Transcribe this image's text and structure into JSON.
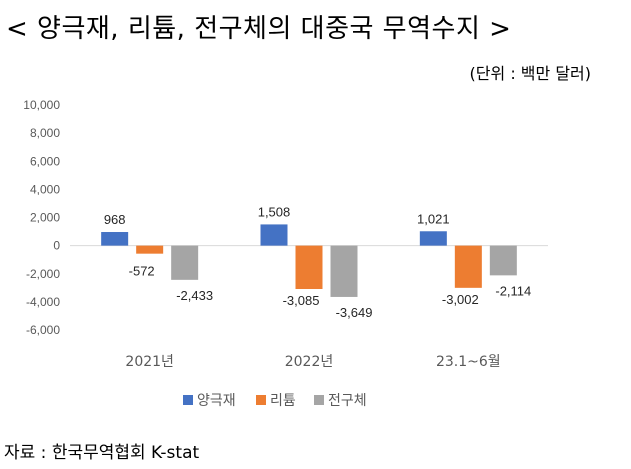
{
  "header": {
    "title": "< 양극재, 리튬, 전구체의 대중국 무역수지 >",
    "unit": "(단위 : 백만 달러)"
  },
  "footer": {
    "source": "자료 : 한국무역협회 K-stat"
  },
  "chart_data": {
    "type": "bar",
    "categories": [
      "2021년",
      "2022년",
      "23.1~6월"
    ],
    "series": [
      {
        "name": "양극재",
        "values": [
          968,
          1508,
          1021
        ],
        "labels": [
          "968",
          "1,508",
          "1,021"
        ],
        "color": "#4472C4"
      },
      {
        "name": "리튬",
        "values": [
          -572,
          -3085,
          -3002
        ],
        "labels": [
          "-572",
          "-3,085",
          "-3,002"
        ],
        "color": "#ED7D31"
      },
      {
        "name": "전구체",
        "values": [
          -2433,
          -3649,
          -2114
        ],
        "labels": [
          "-2,433",
          "-3,649",
          "-2,114"
        ],
        "color": "#A5A5A5"
      }
    ],
    "ylim": [
      -6000,
      10000
    ],
    "yticks": [
      10000,
      8000,
      6000,
      4000,
      2000,
      0,
      -2000,
      -4000,
      -6000
    ],
    "ytick_labels": [
      "10,000",
      "8,000",
      "6,000",
      "4,000",
      "2,000",
      "0",
      "-2,000",
      "-4,000",
      "-6,000"
    ],
    "legend": "bottom",
    "grid": false
  }
}
